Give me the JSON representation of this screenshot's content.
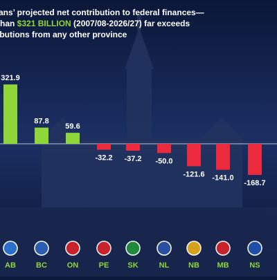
{
  "chart_data": {
    "type": "bar",
    "title_lines": [
      "tans’ projected net contribution to federal finances—",
      "than ",
      "$321 BILLION",
      " (2007/08-2026/27) far exceeds",
      "ibutions from any other province"
    ],
    "categories": [
      "AB",
      "BC",
      "ON",
      "PE",
      "SK",
      "NL",
      "NB",
      "MB",
      "NS"
    ],
    "values": [
      321.9,
      87.8,
      59.6,
      -32.2,
      -37.2,
      -50,
      -121.6,
      -141,
      -168.7
    ],
    "value_labels": [
      "321.9",
      "87.8",
      "59.6",
      "-32.2",
      "-37.2",
      "-50.0",
      "-121.6",
      "-141.0",
      "-168.7"
    ],
    "ylim": [
      -225,
      405
    ],
    "positive_color": "#8fd63a",
    "negative_color": "#ec2a3e",
    "highlight_color": "#8fd63a"
  }
}
